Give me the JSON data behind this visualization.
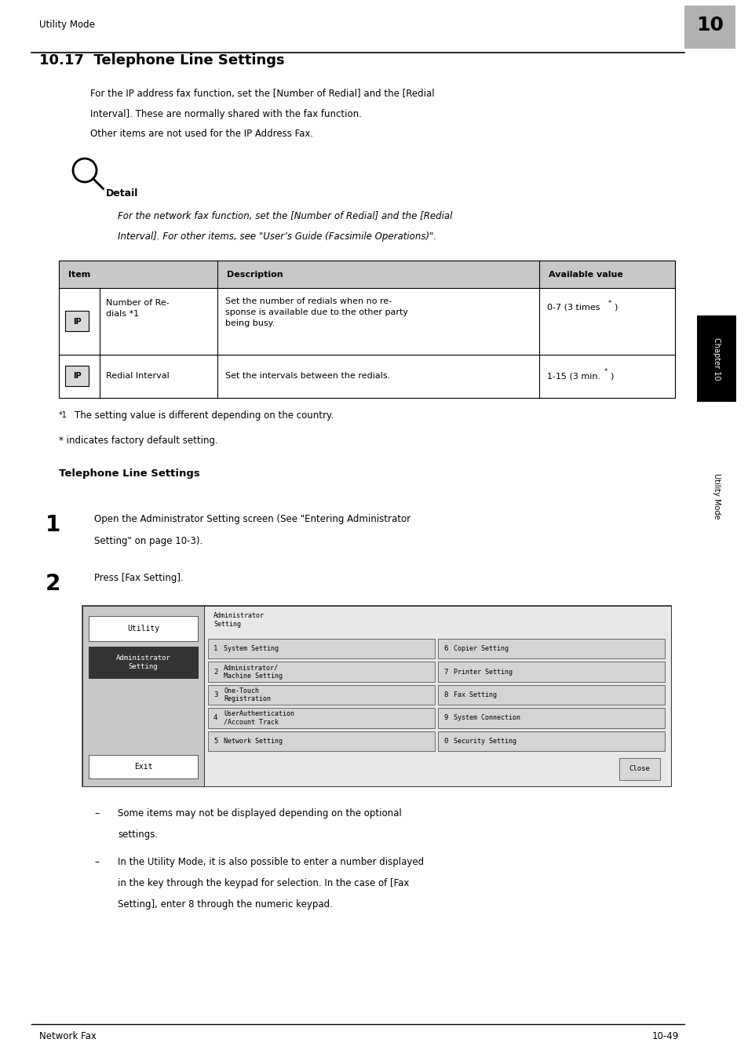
{
  "page_width": 9.54,
  "page_height": 13.52,
  "bg_color": "#ffffff",
  "header_text": "Utility Mode",
  "header_number": "10",
  "header_number_bg": "#b0b0b0",
  "title": "10.17  Telephone Line Settings",
  "para1_line1": "For the IP address fax function, set the [Number of Redial] and the [Redial",
  "para1_line2": "Interval]. These are normally shared with the fax function.",
  "para2": "Other items are not used for the IP Address Fax.",
  "detail_label": "Detail",
  "detail_italic_line1": "For the network fax function, set the [Number of Redial] and the [Redial",
  "detail_italic_line2": "Interval]. For other items, see \"User’s Guide (Facsimile Operations)\".",
  "table_col_headers": [
    "Item",
    "Description",
    "Available value"
  ],
  "table_row1_item": "Number of Re-\ndials *1",
  "table_row1_desc": "Set the number of redials when no re-\nsponse is available due to the other party\nbeing busy.",
  "table_row1_val": "0-7 (3 times",
  "table_row1_val_sup": "*",
  "table_row2_item": "Redial Interval",
  "table_row2_desc": "Set the intervals between the redials.",
  "table_row2_val": "1-15 (3 min.",
  "table_row2_val_sup": "*",
  "table_row2_val_end": ")",
  "footnote1_sup": "*1",
  "footnote1_text": "    The setting value is different depending on the country.",
  "footnote2": "* indicates factory default setting.",
  "section_title": "Telephone Line Settings",
  "step1_num": "1",
  "step1_line1": "Open the Administrator Setting screen (See \"Entering Administrator",
  "step1_line2": "Setting\" on page 10-3).",
  "step2_num": "2",
  "step2_text": "Press [Fax Setting].",
  "screen_title": "Administrator\nSetting",
  "screen_left_btn1": "Utility",
  "screen_left_btn2_line1": "Administrator",
  "screen_left_btn2_line2": "Setting",
  "screen_exit": "Exit",
  "screen_close": "Close",
  "screen_buttons": [
    [
      "1",
      "System Setting",
      "6",
      "Copier Setting"
    ],
    [
      "2",
      "Administrator/\nMachine Setting",
      "7",
      "Printer Setting"
    ],
    [
      "3",
      "One-Touch\nRegistration",
      "8",
      "Fax Setting"
    ],
    [
      "4",
      "UserAuthentication\n/Account Track",
      "9",
      "System Connection"
    ],
    [
      "5",
      "Network Setting",
      "0",
      "Security Setting"
    ]
  ],
  "bullet1_line1": "Some items may not be displayed depending on the optional",
  "bullet1_line2": "settings.",
  "bullet2_line1": "In the Utility Mode, it is also possible to enter a number displayed",
  "bullet2_line2": "in the key through the keypad for selection. In the case of [Fax",
  "bullet2_line3": "Setting], enter 8 through the numeric keypad.",
  "footer_left": "Network Fax",
  "footer_right": "10-49"
}
